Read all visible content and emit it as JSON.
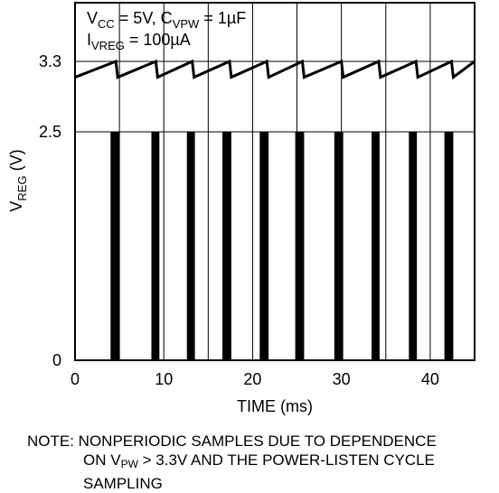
{
  "chart_data": {
    "type": "line",
    "annotation": {
      "line1": {
        "v": "V",
        "v_sub": "CC",
        "mid": " = 5V, C",
        "c_sub": "VPW",
        "end": " = 1µF"
      },
      "line2": {
        "i": "I",
        "i_sub": "VREG",
        "end": " = 100µA"
      }
    },
    "xlabel": "TIME (ms)",
    "ylabel": {
      "main": "V",
      "sub": "REG",
      "unit": " (V)"
    },
    "xlim": [
      0,
      45
    ],
    "x_ticks": [
      0,
      10,
      20,
      30,
      40
    ],
    "x_tick_labels": [
      "0",
      "10",
      "20",
      "30",
      "40"
    ],
    "y_ticks": [
      0,
      2.5,
      3.3
    ],
    "y_tick_labels": [
      "0",
      "2.5",
      "3.3"
    ],
    "grid": true,
    "sawtooth": {
      "low": 3.12,
      "high": 3.3,
      "drops_ms": [
        4.6,
        9.1,
        13.2,
        17.4,
        21.6,
        25.6,
        30,
        34.2,
        38.4,
        42.4,
        45
      ]
    },
    "sample_pulses": {
      "level": 2.5,
      "pulses_ms": [
        {
          "start": 4.0,
          "end": 5.0
        },
        {
          "start": 8.6,
          "end": 9.5
        },
        {
          "start": 12.6,
          "end": 13.5
        },
        {
          "start": 16.6,
          "end": 17.6
        },
        {
          "start": 20.8,
          "end": 21.8
        },
        {
          "start": 24.8,
          "end": 25.8
        },
        {
          "start": 29.2,
          "end": 30.2
        },
        {
          "start": 33.4,
          "end": 34.3
        },
        {
          "start": 37.6,
          "end": 38.5
        },
        {
          "start": 41.6,
          "end": 42.6
        }
      ]
    }
  },
  "note": {
    "line1": "NOTE: NONPERIODIC SAMPLES DUE TO DEPENDENCE",
    "line2a": "ON V",
    "line2sub": "PW",
    "line2b": " > 3.3V AND THE POWER-LISTEN CYCLE",
    "line3": "SAMPLING"
  }
}
